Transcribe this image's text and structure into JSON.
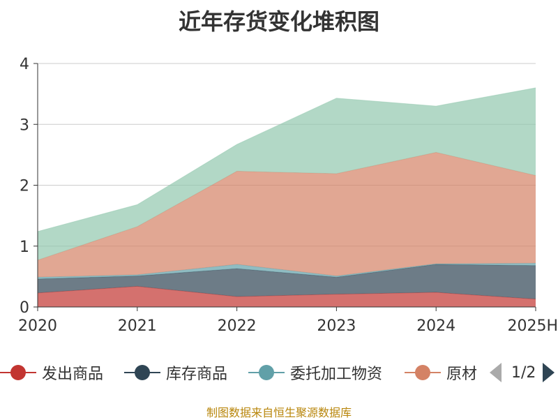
{
  "chart_data": {
    "type": "area",
    "stacked": true,
    "title": "近年存货变化堆积图",
    "categories": [
      "2020",
      "2021",
      "2022",
      "2023",
      "2024",
      "2025H"
    ],
    "ylim": [
      0,
      4
    ],
    "yticks": [
      0,
      1,
      2,
      3,
      4
    ],
    "grid": true,
    "legend_position": "bottom",
    "series": [
      {
        "name": "发出商品",
        "color": "#c23531",
        "values": [
          0.23,
          0.34,
          0.17,
          0.21,
          0.24,
          0.13
        ]
      },
      {
        "name": "库存商品",
        "color": "#2f4554",
        "values": [
          0.23,
          0.17,
          0.46,
          0.28,
          0.46,
          0.55
        ]
      },
      {
        "name": "委托加工物资",
        "color": "#61a0a8",
        "values": [
          0.03,
          0.02,
          0.07,
          0.02,
          0.01,
          0.04
        ]
      },
      {
        "name": "原材",
        "color": "#d48265",
        "values": [
          0.28,
          0.79,
          1.53,
          1.68,
          1.83,
          1.44
        ]
      },
      {
        "name": "",
        "color": "#91c7ae",
        "values": [
          0.47,
          0.36,
          0.44,
          1.24,
          0.76,
          1.44
        ]
      }
    ]
  },
  "legend": {
    "items": [
      {
        "label": "发出商品",
        "color": "#c23531"
      },
      {
        "label": "库存商品",
        "color": "#2f4554"
      },
      {
        "label": "委托加工物资",
        "color": "#61a0a8"
      },
      {
        "label": "原材",
        "color": "#d48265"
      }
    ],
    "page_text": "1/2"
  },
  "source": "制图数据来自恒生聚源数据库"
}
